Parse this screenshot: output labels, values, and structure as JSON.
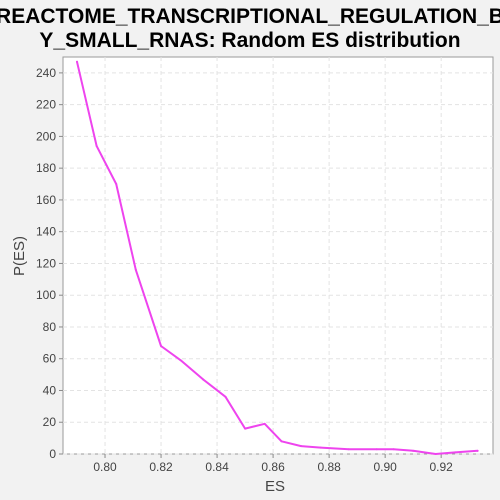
{
  "chart_data": {
    "type": "line",
    "title_lines": [
      "REACTOME_TRANSCRIPTIONAL_REGULATION_B",
      "Y_SMALL_RNAS: Random ES distribution"
    ],
    "xlabel": "ES",
    "ylabel": "P(ES)",
    "xlim": [
      0.785,
      0.9385
    ],
    "ylim": [
      0,
      250
    ],
    "x_ticks": [
      0.8,
      0.82,
      0.84,
      0.86,
      0.88,
      0.9,
      0.92
    ],
    "x_tick_labels": [
      "0.80",
      "0.82",
      "0.84",
      "0.86",
      "0.88",
      "0.90",
      "0.92"
    ],
    "y_ticks": [
      0,
      20,
      40,
      60,
      80,
      100,
      120,
      140,
      160,
      180,
      200,
      220,
      240
    ],
    "y_tick_labels": [
      "0",
      "20",
      "40",
      "60",
      "80",
      "100",
      "120",
      "140",
      "160",
      "180",
      "200",
      "220",
      "240"
    ],
    "grid": true,
    "series": [
      {
        "color": "#ee44ee",
        "x": [
          0.79,
          0.797,
          0.804,
          0.811,
          0.82,
          0.827,
          0.835,
          0.843,
          0.85,
          0.857,
          0.863,
          0.87,
          0.877,
          0.887,
          0.897,
          0.903,
          0.91,
          0.918,
          0.925,
          0.933
        ],
        "y": [
          247,
          194,
          170,
          116,
          68,
          59,
          47,
          36,
          16,
          19,
          8,
          5,
          4,
          3,
          3,
          3,
          2,
          0,
          1,
          2
        ]
      }
    ]
  }
}
